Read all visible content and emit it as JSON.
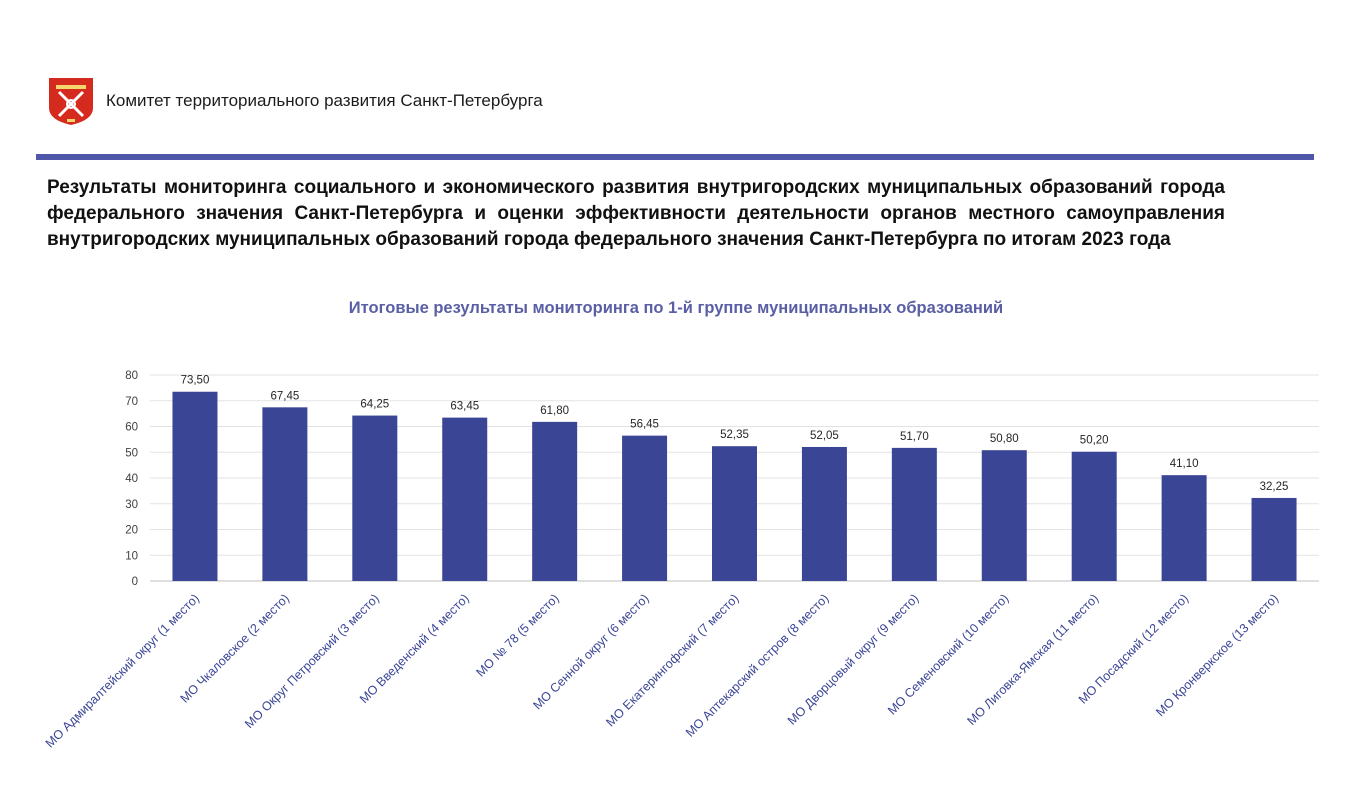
{
  "header": {
    "org_name": "Комитет территориального развития Санкт-Петербурга",
    "logo_icon": "spb-coat-of-arms-icon"
  },
  "report_title": "Результаты мониторинга социального и экономического развития внутригородских муниципальных образований города федерального значения Санкт-Петербурга и оценки эффективности деятельности органов местного самоуправления внутригородских муниципальных образований города федерального значения Санкт-Петербурга по итогам 2023 года",
  "colors": {
    "bar": "#3b4596",
    "divider": "#4f57a8",
    "chart_title": "#5a5fa5",
    "category_label": "#3b4596",
    "logo_red": "#d52b1e"
  },
  "chart_data": {
    "type": "bar",
    "title": "Итоговые результаты мониторинга по 1-й группе муниципальных образований",
    "categories": [
      "МО Адмиралтейский округ (1 место)",
      "МО Чкаловское (2 место)",
      "МО Округ Петровский (3 место)",
      "МО Введенский (4 место)",
      "МО № 78 (5 место)",
      "МО Сенной округ (6 место)",
      "МО Екатерингофский (7 место)",
      "МО Аптекарский остров (8 место)",
      "МО Дворцовый округ (9 место)",
      "МО Семеновский (10 место)",
      "МО Лиговка-Ямская (11 место)",
      "МО Посадский (12 место)",
      "МО Кронверкское (13 место)"
    ],
    "values": [
      73.5,
      67.45,
      64.25,
      63.45,
      61.8,
      56.45,
      52.35,
      52.05,
      51.7,
      50.8,
      50.2,
      41.1,
      32.25
    ],
    "value_labels": [
      "73,50",
      "67,45",
      "64,25",
      "63,45",
      "61,80",
      "56,45",
      "52,35",
      "52,05",
      "51,70",
      "50,80",
      "50,20",
      "41,10",
      "32,25"
    ],
    "yticks": [
      "0",
      "10",
      "20",
      "30",
      "40",
      "50",
      "60",
      "70",
      "80"
    ],
    "ylim": [
      0,
      80
    ],
    "grid": true,
    "legend": "none"
  }
}
